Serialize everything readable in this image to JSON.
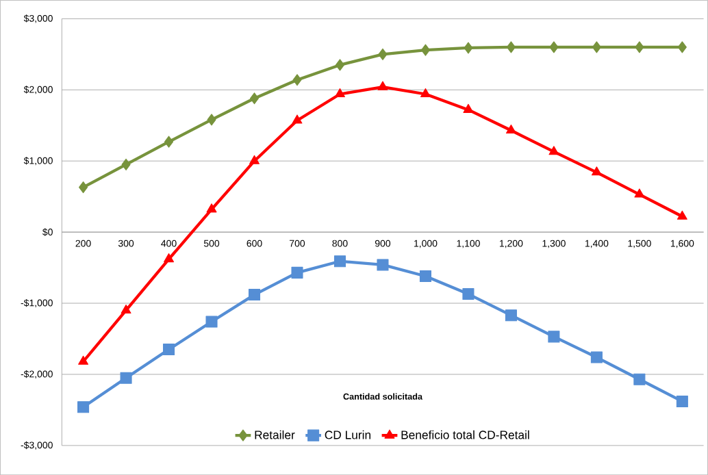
{
  "chart_data": {
    "type": "line",
    "categories": [
      "200",
      "300",
      "400",
      "500",
      "600",
      "700",
      "800",
      "900",
      "1,000",
      "1,100",
      "1,200",
      "1,300",
      "1,400",
      "1,500",
      "1,600"
    ],
    "xlabel": "Cantidad solicitada",
    "series": [
      {
        "name": "Retailer",
        "color": "#77933c",
        "marker": "diamond",
        "values": [
          630,
          950,
          1270,
          1580,
          1880,
          2140,
          2350,
          2500,
          2560,
          2590,
          2600,
          2600,
          2600,
          2600,
          2600
        ]
      },
      {
        "name": "CD Lurin",
        "color": "#558ed5",
        "marker": "square",
        "values": [
          -2460,
          -2050,
          -1650,
          -1260,
          -880,
          -570,
          -410,
          -460,
          -620,
          -870,
          -1170,
          -1470,
          -1760,
          -2070,
          -2380
        ]
      },
      {
        "name": "Beneficio total CD-Retail",
        "color": "#ff0000",
        "marker": "triangle",
        "values": [
          -1820,
          -1100,
          -380,
          320,
          1000,
          1570,
          1940,
          2040,
          1940,
          1720,
          1430,
          1130,
          840,
          530,
          220
        ]
      }
    ],
    "ylim": [
      -3000,
      3000
    ],
    "yticks": [
      {
        "value": -3000,
        "label": "-$3,000"
      },
      {
        "value": -2000,
        "label": "-$2,000"
      },
      {
        "value": -1000,
        "label": "-$1,000"
      },
      {
        "value": 0,
        "label": "$0"
      },
      {
        "value": 1000,
        "label": "$1,000"
      },
      {
        "value": 2000,
        "label": "$2,000"
      },
      {
        "value": 3000,
        "label": "$3,000"
      }
    ],
    "grid": "y",
    "legend": "bottom",
    "line_style": "solid"
  }
}
